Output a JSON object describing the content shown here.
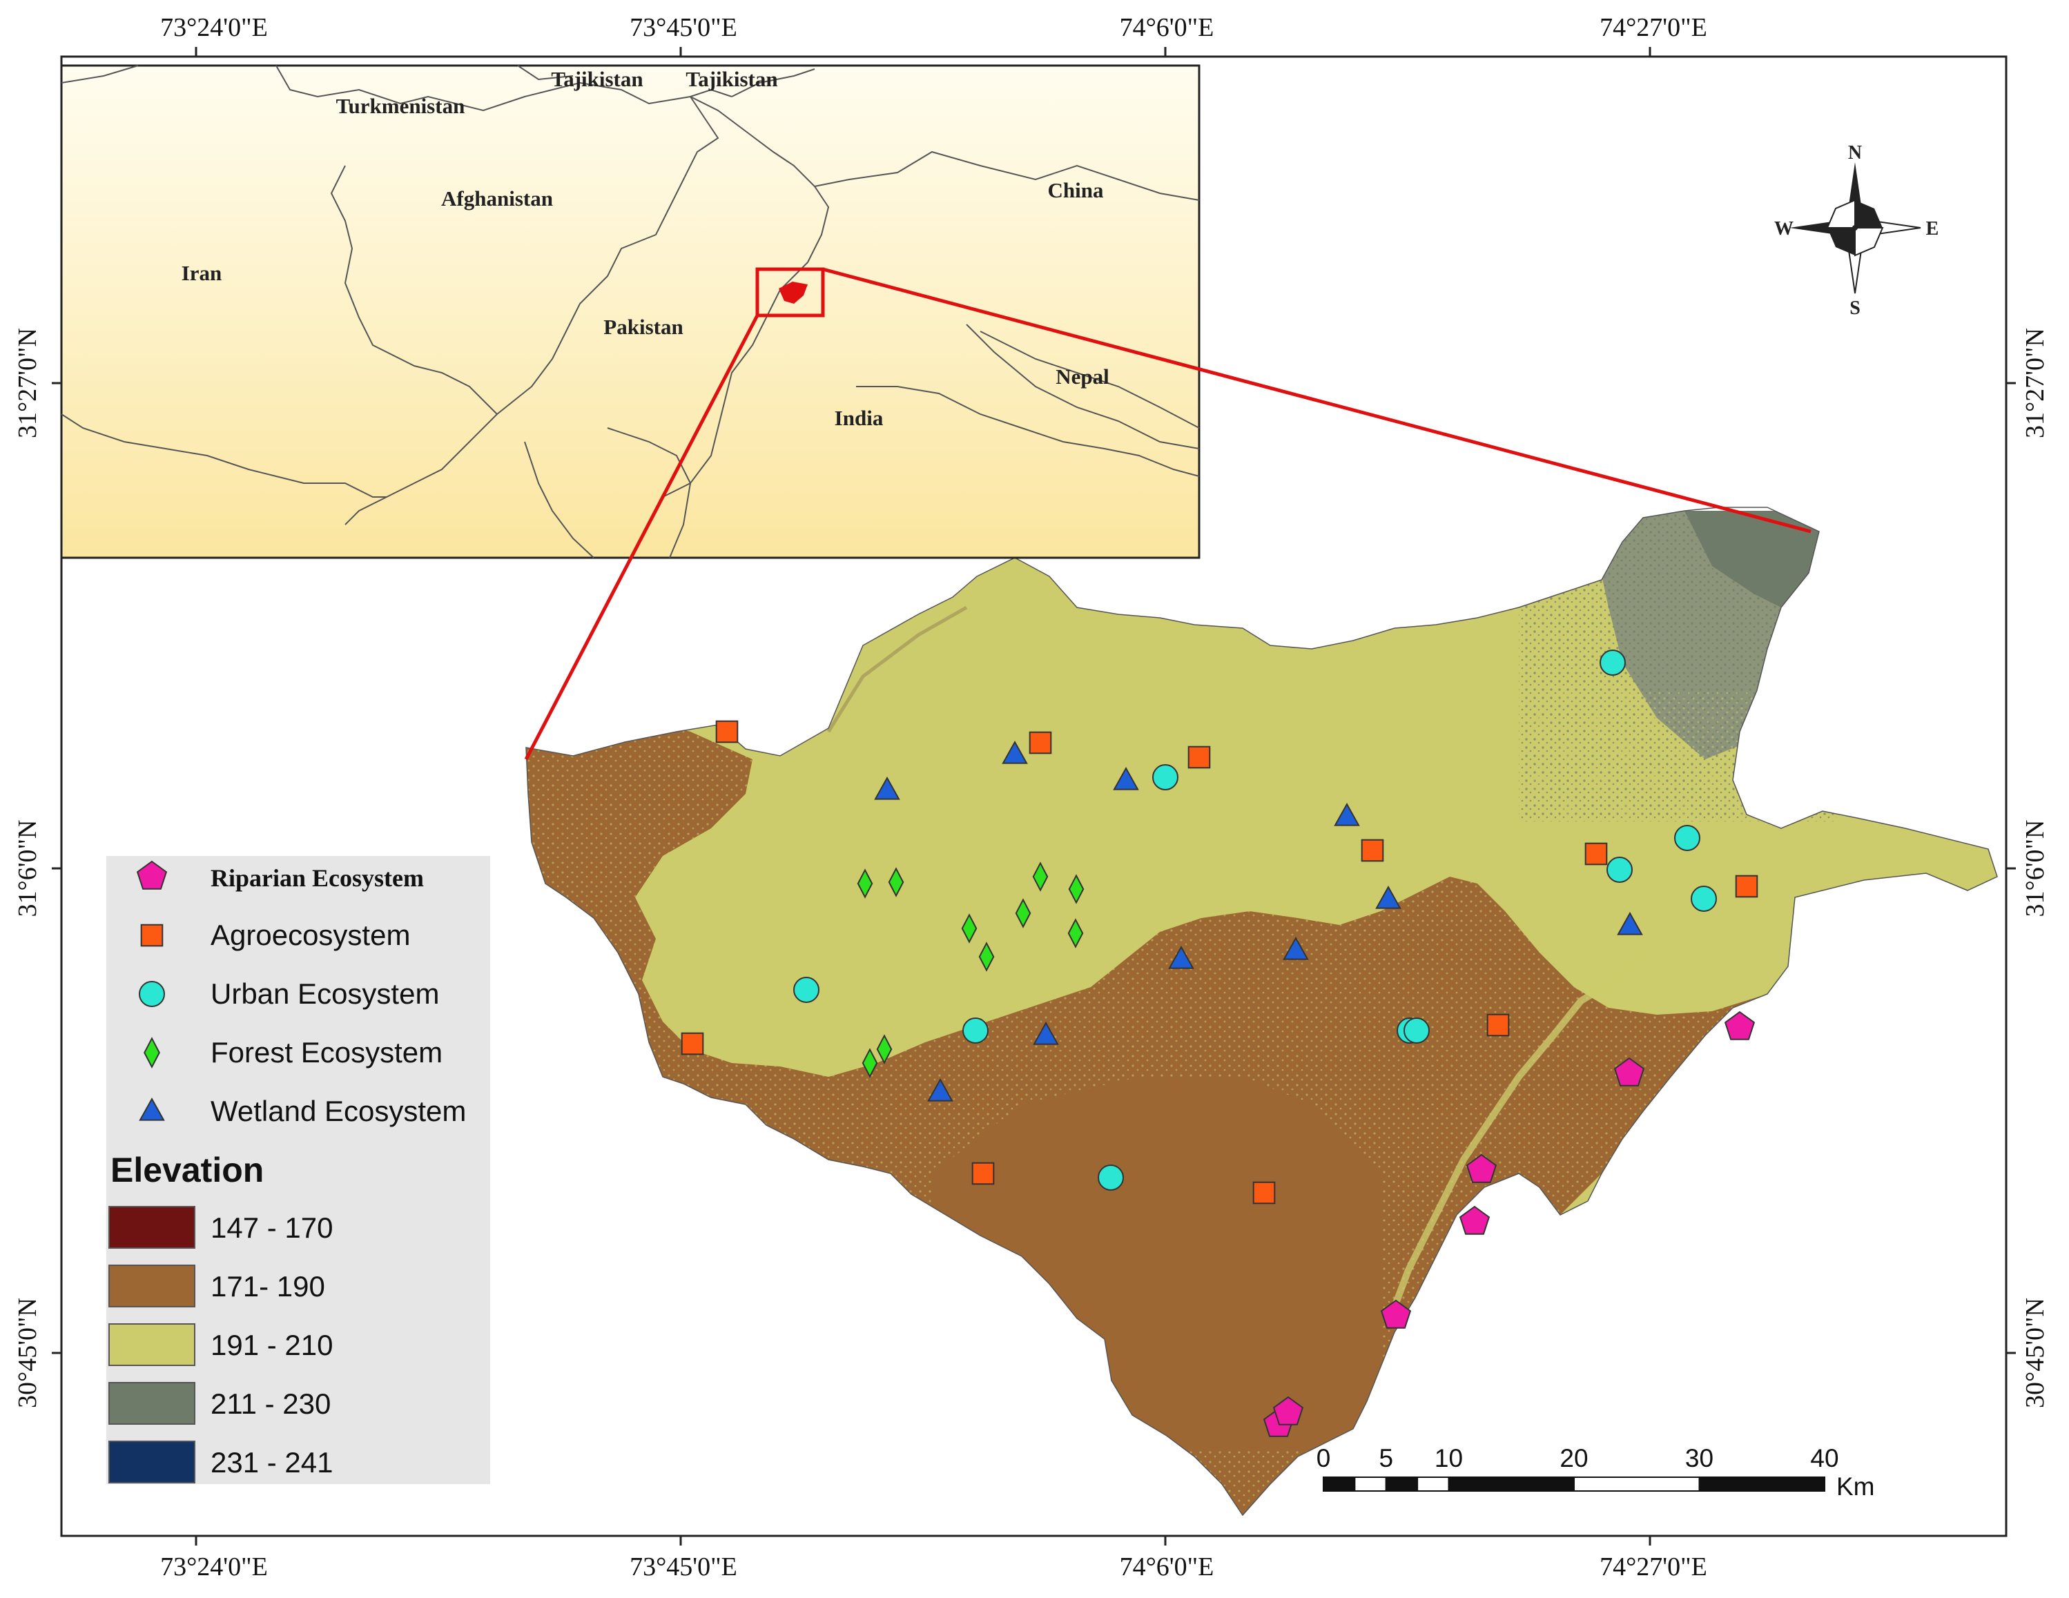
{
  "axes": {
    "lon_ticks": [
      "73°24'0\"E",
      "73°45'0\"E",
      "74°6'0\"E",
      "74°27'0\"E"
    ],
    "lat_ticks": [
      "31°27'0\"N",
      "31°6'0\"N",
      "30°45'0\"N"
    ]
  },
  "inset": {
    "countries": [
      "Turkmenistan",
      "Tajikistan",
      "Tajikistan",
      "Afghanistan",
      "China",
      "Iran",
      "Pakistan",
      "Nepal",
      "India"
    ]
  },
  "compass": {
    "n": "N",
    "s": "S",
    "e": "E",
    "w": "W"
  },
  "legend": {
    "sites": [
      {
        "label": "Riparian Ecosystem",
        "symbol": "pentagon",
        "color": "#ee1aa5"
      },
      {
        "label": "Agroecosystem",
        "symbol": "square",
        "color": "#fc5a12"
      },
      {
        "label": "Urban Ecosystem",
        "symbol": "circle",
        "color": "#2ae6d2"
      },
      {
        "label": "Forest Ecosystem",
        "symbol": "diamond",
        "color": "#2ce21e"
      },
      {
        "label": "Wetland Ecosystem",
        "symbol": "triangle",
        "color": "#1e5fd8"
      }
    ],
    "elevation_title": "Elevation",
    "elevation_classes": [
      {
        "label": "147 - 170",
        "color": "#6e1212"
      },
      {
        "label": "171- 190",
        "color": "#9c6733"
      },
      {
        "label": "191 - 210",
        "color": "#cccc6c"
      },
      {
        "label": "211 - 230",
        "color": "#6e7b68"
      },
      {
        "label": "231 - 241",
        "color": "#123264"
      }
    ]
  },
  "scale_bar": {
    "labels": [
      "0",
      "5",
      "10",
      "20",
      "30",
      "40"
    ],
    "unit": "Km"
  },
  "colors": {
    "highlight_red": "#e01010",
    "inset_bg_top": "#fffdf0",
    "inset_bg_bottom": "#fbe9a3"
  }
}
